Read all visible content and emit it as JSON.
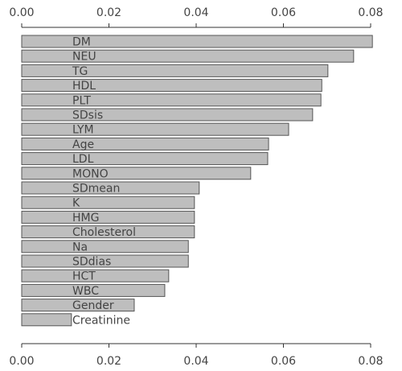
{
  "chart_data": {
    "type": "barh",
    "categories": [
      "DM",
      "NEU",
      "TG",
      "HDL",
      "PLT",
      "SDsis",
      "LYM",
      "Age",
      "LDL",
      "MONO",
      "SDmean",
      "K",
      "HMG",
      "Cholesterol",
      "Na",
      "SDdias",
      "HCT",
      "WBC",
      "Gender",
      "Creatinine"
    ],
    "values": [
      0.0804,
      0.0761,
      0.0702,
      0.0688,
      0.0686,
      0.0667,
      0.0612,
      0.0566,
      0.0564,
      0.0525,
      0.0407,
      0.0396,
      0.0396,
      0.0396,
      0.0382,
      0.0382,
      0.0337,
      0.0328,
      0.0258,
      0.0114
    ],
    "color": "#bebebe",
    "xlim": [
      0,
      0.08
    ],
    "xticks": [
      {
        "value": 0,
        "label": "0.00"
      },
      0.02,
      0.04,
      0.06,
      0.08
    ]
  }
}
